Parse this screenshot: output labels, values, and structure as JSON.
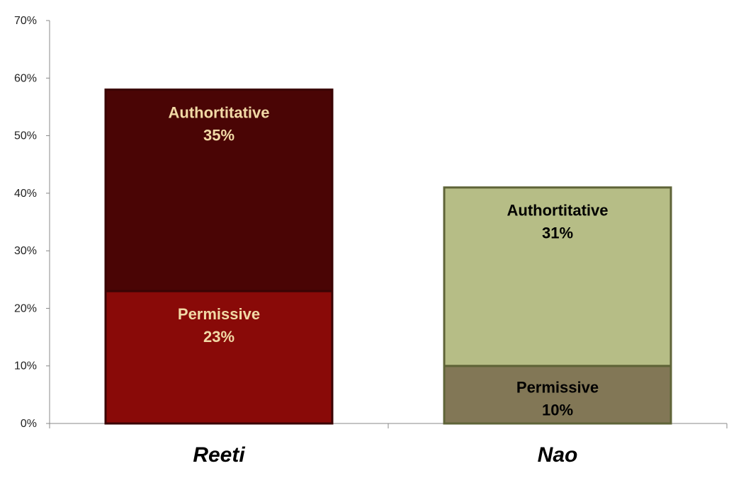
{
  "chart_data": {
    "type": "bar",
    "stacked": true,
    "categories": [
      "Reeti",
      "Nao"
    ],
    "series": [
      {
        "name": "Permissive",
        "values": [
          23,
          10
        ]
      },
      {
        "name": "Authortitative",
        "values": [
          35,
          31
        ]
      }
    ],
    "ylim": [
      0,
      70
    ],
    "yticks": [
      "0%",
      "10%",
      "20%",
      "30%",
      "40%",
      "50%",
      "60%",
      "70%"
    ],
    "data_labels": [
      {
        "category": "Reeti",
        "series": "Permissive",
        "text": "Permissive",
        "value": "23%"
      },
      {
        "category": "Reeti",
        "series": "Authortitative",
        "text": "Authortitative",
        "value": "35%"
      },
      {
        "category": "Nao",
        "series": "Permissive",
        "text": "Permissive",
        "value": "10%"
      },
      {
        "category": "Nao",
        "series": "Authortitative",
        "text": "Authortitative",
        "value": "31%"
      }
    ],
    "colors": {
      "Reeti": {
        "Permissive": "#890a08",
        "Authortitative": "#4a0505",
        "label": "#f1d9a6",
        "border": "#3a0404"
      },
      "Nao": {
        "Permissive": "#827756",
        "Authortitative": "#b6bd86",
        "label": "#000000",
        "border": "#5f6438"
      }
    },
    "grid": false,
    "legend": "none"
  }
}
